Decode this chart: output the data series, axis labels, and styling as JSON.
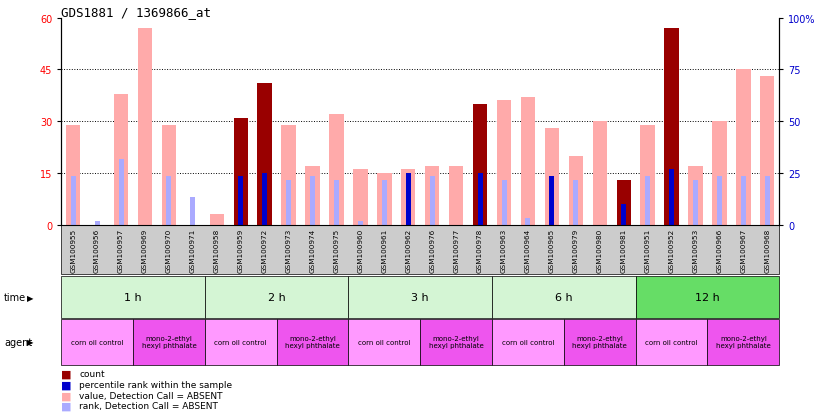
{
  "title": "GDS1881 / 1369866_at",
  "samples": [
    "GSM100955",
    "GSM100956",
    "GSM100957",
    "GSM100969",
    "GSM100970",
    "GSM100971",
    "GSM100958",
    "GSM100959",
    "GSM100972",
    "GSM100973",
    "GSM100974",
    "GSM100975",
    "GSM100960",
    "GSM100961",
    "GSM100962",
    "GSM100976",
    "GSM100977",
    "GSM100978",
    "GSM100963",
    "GSM100964",
    "GSM100965",
    "GSM100979",
    "GSM100980",
    "GSM100981",
    "GSM100951",
    "GSM100952",
    "GSM100953",
    "GSM100966",
    "GSM100967",
    "GSM100968"
  ],
  "count_values": [
    0,
    0,
    0,
    0,
    0,
    0,
    0,
    31,
    41,
    0,
    0,
    0,
    0,
    0,
    0,
    0,
    0,
    35,
    0,
    0,
    0,
    0,
    0,
    13,
    0,
    57,
    0,
    0,
    0,
    0
  ],
  "rank_values": [
    0,
    0,
    0,
    0,
    0,
    0,
    0,
    14,
    15,
    0,
    0,
    0,
    0,
    0,
    15,
    0,
    0,
    15,
    0,
    0,
    14,
    0,
    0,
    6,
    0,
    16,
    0,
    0,
    0,
    0
  ],
  "value_absent": [
    29,
    0,
    38,
    57,
    29,
    0,
    3,
    0,
    35,
    29,
    17,
    32,
    16,
    15,
    16,
    17,
    17,
    0,
    36,
    37,
    28,
    20,
    30,
    0,
    29,
    0,
    17,
    30,
    45,
    43
  ],
  "rank_absent": [
    14,
    1,
    19,
    0,
    14,
    8,
    0,
    0,
    0,
    13,
    14,
    13,
    1,
    13,
    13,
    14,
    0,
    0,
    13,
    2,
    13,
    13,
    0,
    0,
    14,
    0,
    13,
    14,
    14,
    14
  ],
  "time_groups": [
    {
      "label": "1 h",
      "start": 0,
      "end": 6,
      "color": "#d4f5d4"
    },
    {
      "label": "2 h",
      "start": 6,
      "end": 12,
      "color": "#d4f5d4"
    },
    {
      "label": "3 h",
      "start": 12,
      "end": 18,
      "color": "#d4f5d4"
    },
    {
      "label": "6 h",
      "start": 18,
      "end": 24,
      "color": "#d4f5d4"
    },
    {
      "label": "12 h",
      "start": 24,
      "end": 30,
      "color": "#66dd66"
    }
  ],
  "agent_groups": [
    {
      "label": "corn oil control",
      "start": 0,
      "end": 3,
      "color": "#ff99ff"
    },
    {
      "label": "mono-2-ethyl\nhexyl phthalate",
      "start": 3,
      "end": 6,
      "color": "#ee55ee"
    },
    {
      "label": "corn oil control",
      "start": 6,
      "end": 9,
      "color": "#ff99ff"
    },
    {
      "label": "mono-2-ethyl\nhexyl phthalate",
      "start": 9,
      "end": 12,
      "color": "#ee55ee"
    },
    {
      "label": "corn oil control",
      "start": 12,
      "end": 15,
      "color": "#ff99ff"
    },
    {
      "label": "mono-2-ethyl\nhexyl phthalate",
      "start": 15,
      "end": 18,
      "color": "#ee55ee"
    },
    {
      "label": "corn oil control",
      "start": 18,
      "end": 21,
      "color": "#ff99ff"
    },
    {
      "label": "mono-2-ethyl\nhexyl phthalate",
      "start": 21,
      "end": 24,
      "color": "#ee55ee"
    },
    {
      "label": "corn oil control",
      "start": 24,
      "end": 27,
      "color": "#ff99ff"
    },
    {
      "label": "mono-2-ethyl\nhexyl phthalate",
      "start": 27,
      "end": 30,
      "color": "#ee55ee"
    }
  ],
  "ylim_left": [
    0,
    60
  ],
  "ylim_right": [
    0,
    100
  ],
  "yticks_left": [
    0,
    15,
    30,
    45,
    60
  ],
  "yticks_right": [
    0,
    25,
    50,
    75,
    100
  ],
  "ytick_labels_right": [
    "0",
    "25",
    "50",
    "75",
    "100%"
  ],
  "color_count": "#990000",
  "color_rank": "#0000cc",
  "color_value_absent": "#ffaaaa",
  "color_rank_absent": "#aaaaff",
  "bar_width": 0.6,
  "background_plot": "#ffffff",
  "background_xaxis": "#cccccc",
  "fig_width": 8.16,
  "fig_height": 4.14,
  "dpi": 100
}
